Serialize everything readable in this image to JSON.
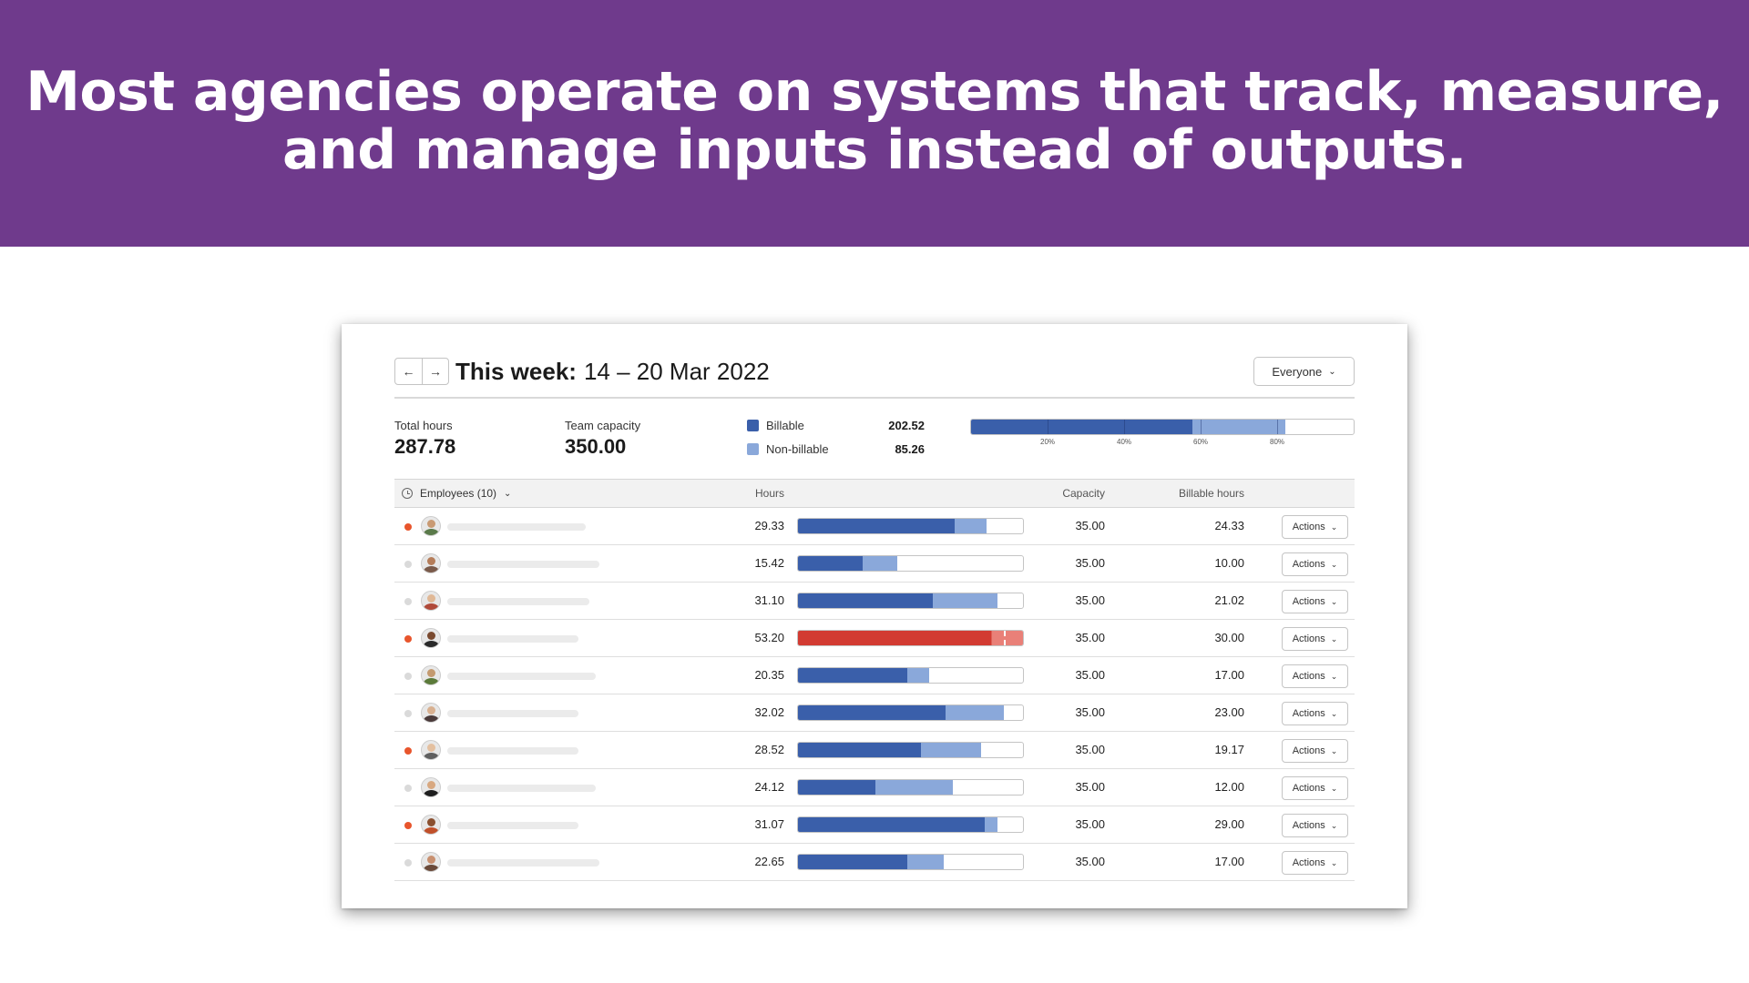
{
  "headline": {
    "line1": "Most agencies operate on systems that track, measure,",
    "line2": "and manage inputs instead of outputs."
  },
  "colors": {
    "banner": "#6f3a8c",
    "billable": "#3a5faa",
    "non_billable": "#8aa8da",
    "over_capacity": "#d23b32",
    "over_capacity_light": "#e98078",
    "status_orange": "#e8552c",
    "status_grey": "#dadada"
  },
  "toolbar": {
    "prev_icon": "arrow-left-icon",
    "next_icon": "arrow-right-icon",
    "week_prefix": "This week:",
    "week_range": "14 – 20 Mar 2022",
    "filter_value": "Everyone"
  },
  "summary": {
    "total_hours_label": "Total hours",
    "total_hours": "287.78",
    "team_capacity_label": "Team capacity",
    "team_capacity": "350.00",
    "billable_label": "Billable",
    "billable_value": "202.52",
    "non_billable_label": "Non-billable",
    "non_billable_value": "85.26",
    "bar": {
      "billable_fraction": 0.5786,
      "non_billable_fraction": 0.2436,
      "ticks": [
        {
          "label": "20%",
          "fraction": 0.2
        },
        {
          "label": "40%",
          "fraction": 0.4
        },
        {
          "label": "60%",
          "fraction": 0.6
        },
        {
          "label": "80%",
          "fraction": 0.8
        }
      ]
    }
  },
  "table": {
    "columns": {
      "employees": "Employees (10)",
      "hours": "Hours",
      "capacity": "Capacity",
      "billable_hours": "Billable hours"
    },
    "action_label": "Actions",
    "rows": [
      {
        "status": "orange",
        "hours": "29.33",
        "hours_value": 29.33,
        "billable": 24.33,
        "capacity": "35.00",
        "billable_hours": "24.33",
        "name_fraction": 0.4,
        "avatar_skin": "#c99a73",
        "avatar_shirt": "#5a7a4a"
      },
      {
        "status": "grey",
        "hours": "15.42",
        "hours_value": 15.42,
        "billable": 10.0,
        "capacity": "35.00",
        "billable_hours": "10.00",
        "name_fraction": 0.44,
        "avatar_skin": "#b57d5a",
        "avatar_shirt": "#7a5a4a"
      },
      {
        "status": "grey",
        "hours": "31.10",
        "hours_value": 31.1,
        "billable": 21.02,
        "capacity": "35.00",
        "billable_hours": "21.02",
        "name_fraction": 0.41,
        "avatar_skin": "#e0b896",
        "avatar_shirt": "#b04a3a"
      },
      {
        "status": "orange",
        "hours": "53.20",
        "hours_value": 53.2,
        "billable": 30.0,
        "capacity": "35.00",
        "billable_hours": "30.00",
        "name_fraction": 0.38,
        "avatar_skin": "#7a4a30",
        "avatar_shirt": "#2a2a2a",
        "over": true
      },
      {
        "status": "grey",
        "hours": "20.35",
        "hours_value": 20.35,
        "billable": 17.0,
        "capacity": "35.00",
        "billable_hours": "17.00",
        "name_fraction": 0.43,
        "avatar_skin": "#c49a70",
        "avatar_shirt": "#5b7a3a"
      },
      {
        "status": "grey",
        "hours": "32.02",
        "hours_value": 32.02,
        "billable": 23.0,
        "capacity": "35.00",
        "billable_hours": "23.00",
        "name_fraction": 0.38,
        "avatar_skin": "#d8b090",
        "avatar_shirt": "#4a3a3a"
      },
      {
        "status": "orange",
        "hours": "28.52",
        "hours_value": 28.52,
        "billable": 19.17,
        "capacity": "35.00",
        "billable_hours": "19.17",
        "name_fraction": 0.38,
        "avatar_skin": "#e4c0a0",
        "avatar_shirt": "#606060"
      },
      {
        "status": "grey",
        "hours": "24.12",
        "hours_value": 24.12,
        "billable": 12.0,
        "capacity": "35.00",
        "billable_hours": "12.00",
        "name_fraction": 0.43,
        "avatar_skin": "#d8a880",
        "avatar_shirt": "#1e1e1e"
      },
      {
        "status": "orange",
        "hours": "31.07",
        "hours_value": 31.07,
        "billable": 29.0,
        "capacity": "35.00",
        "billable_hours": "29.00",
        "name_fraction": 0.38,
        "avatar_skin": "#8a5030",
        "avatar_shirt": "#c0502a"
      },
      {
        "status": "grey",
        "hours": "22.65",
        "hours_value": 22.65,
        "billable": 17.0,
        "capacity": "35.00",
        "billable_hours": "17.00",
        "name_fraction": 0.44,
        "avatar_skin": "#c89070",
        "avatar_shirt": "#6a4a3a"
      }
    ]
  }
}
